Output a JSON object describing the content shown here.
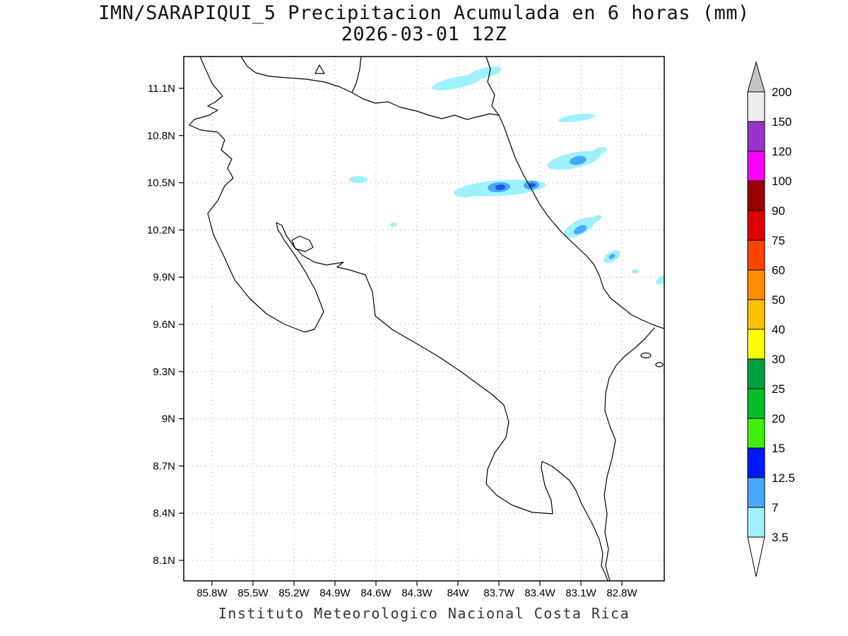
{
  "title": {
    "line1": "IMN/SARAPIQUI_5 Precipitacion Acumulada en 6 horas (mm)",
    "line2": "2026-03-01 12Z"
  },
  "footer": "Instituto Meteorologico Nacional Costa Rica",
  "axes": {
    "lat_ticks": [
      "11.1N",
      "10.8N",
      "10.5N",
      "10.2N",
      "9.9N",
      "9.6N",
      "9.3N",
      "9N",
      "8.7N",
      "8.4N",
      "8.1N"
    ],
    "lon_ticks": [
      "85.8W",
      "85.5W",
      "85.2W",
      "84.9W",
      "84.6W",
      "84.3W",
      "84W",
      "83.7W",
      "83.4W",
      "83.1W",
      "82.8W"
    ]
  },
  "colorbar": {
    "labels_top_to_bottom": [
      "200",
      "150",
      "120",
      "100",
      "90",
      "75",
      "60",
      "50",
      "40",
      "30",
      "25",
      "20",
      "15",
      "12.5",
      "7",
      "3.5"
    ],
    "segments_top_to_bottom": [
      {
        "range": "150-200",
        "color": "#ededed"
      },
      {
        "range": "120-150",
        "color": "#9933cc"
      },
      {
        "range": "100-120",
        "color": "#ff00ff"
      },
      {
        "range": "90-100",
        "color": "#990000"
      },
      {
        "range": "75-90",
        "color": "#e00000"
      },
      {
        "range": "60-75",
        "color": "#ff4400"
      },
      {
        "range": "50-60",
        "color": "#ff8c00"
      },
      {
        "range": "40-50",
        "color": "#ffc000"
      },
      {
        "range": "30-40",
        "color": "#ffff00"
      },
      {
        "range": "25-30",
        "color": "#00a040"
      },
      {
        "range": "20-25",
        "color": "#00c028"
      },
      {
        "range": "15-20",
        "color": "#3df00a"
      },
      {
        "range": "12.5-15",
        "color": "#0018ff"
      },
      {
        "range": "7-12.5",
        "color": "#49a8f7"
      },
      {
        "range": "3.5-7",
        "color": "#a0f0fb"
      }
    ],
    "above_color": "#c4c4c4",
    "below_color": "#ffffff"
  },
  "colors": {
    "coastline": "#000000",
    "grid": "#999999",
    "precip_light": "#9df1fb",
    "precip_medium": "#49a8f7",
    "precip_heavy": "#1f56e0"
  },
  "chart_data": {
    "type": "heatmap",
    "title": "IMN/SARAPIQUI_5 Precipitacion Acumulada en 6 horas (mm)",
    "valid_time": "2026-03-01 12Z",
    "units": "mm",
    "region": "Costa Rica",
    "lon_ticks_deg_w": [
      85.8,
      85.5,
      85.2,
      84.9,
      84.6,
      84.3,
      84.0,
      83.7,
      83.4,
      83.1,
      82.8
    ],
    "lat_ticks_deg_n": [
      11.1,
      10.8,
      10.5,
      10.2,
      9.9,
      9.6,
      9.3,
      9.0,
      8.7,
      8.4,
      8.1
    ],
    "levels_mm": [
      3.5,
      7,
      12.5,
      15,
      20,
      25,
      30,
      40,
      50,
      60,
      75,
      90,
      100,
      120,
      150,
      200
    ],
    "legend_position": "right",
    "grid": "dotted",
    "precip_cells": [
      {
        "lat_n": 11.16,
        "lon_w": 83.93,
        "max_range_mm": "3.5-7"
      },
      {
        "lat_n": 10.91,
        "lon_w": 83.13,
        "max_range_mm": "3.5-7"
      },
      {
        "lat_n": 10.64,
        "lon_w": 83.13,
        "max_range_mm": "7-12.5"
      },
      {
        "lat_n": 10.47,
        "lon_w": 83.68,
        "max_range_mm": "12.5-15"
      },
      {
        "lat_n": 10.48,
        "lon_w": 83.45,
        "max_range_mm": "12.5-15"
      },
      {
        "lat_n": 10.52,
        "lon_w": 84.73,
        "max_range_mm": "3.5-7"
      },
      {
        "lat_n": 10.23,
        "lon_w": 84.47,
        "max_range_mm": "3.5-7"
      },
      {
        "lat_n": 10.21,
        "lon_w": 83.1,
        "max_range_mm": "7-12.5"
      },
      {
        "lat_n": 10.03,
        "lon_w": 82.87,
        "max_range_mm": "7-12.5"
      },
      {
        "lat_n": 9.94,
        "lon_w": 82.71,
        "max_range_mm": "3.5-7"
      },
      {
        "lat_n": 9.88,
        "lon_w": 82.5,
        "max_range_mm": "3.5-7"
      }
    ]
  }
}
